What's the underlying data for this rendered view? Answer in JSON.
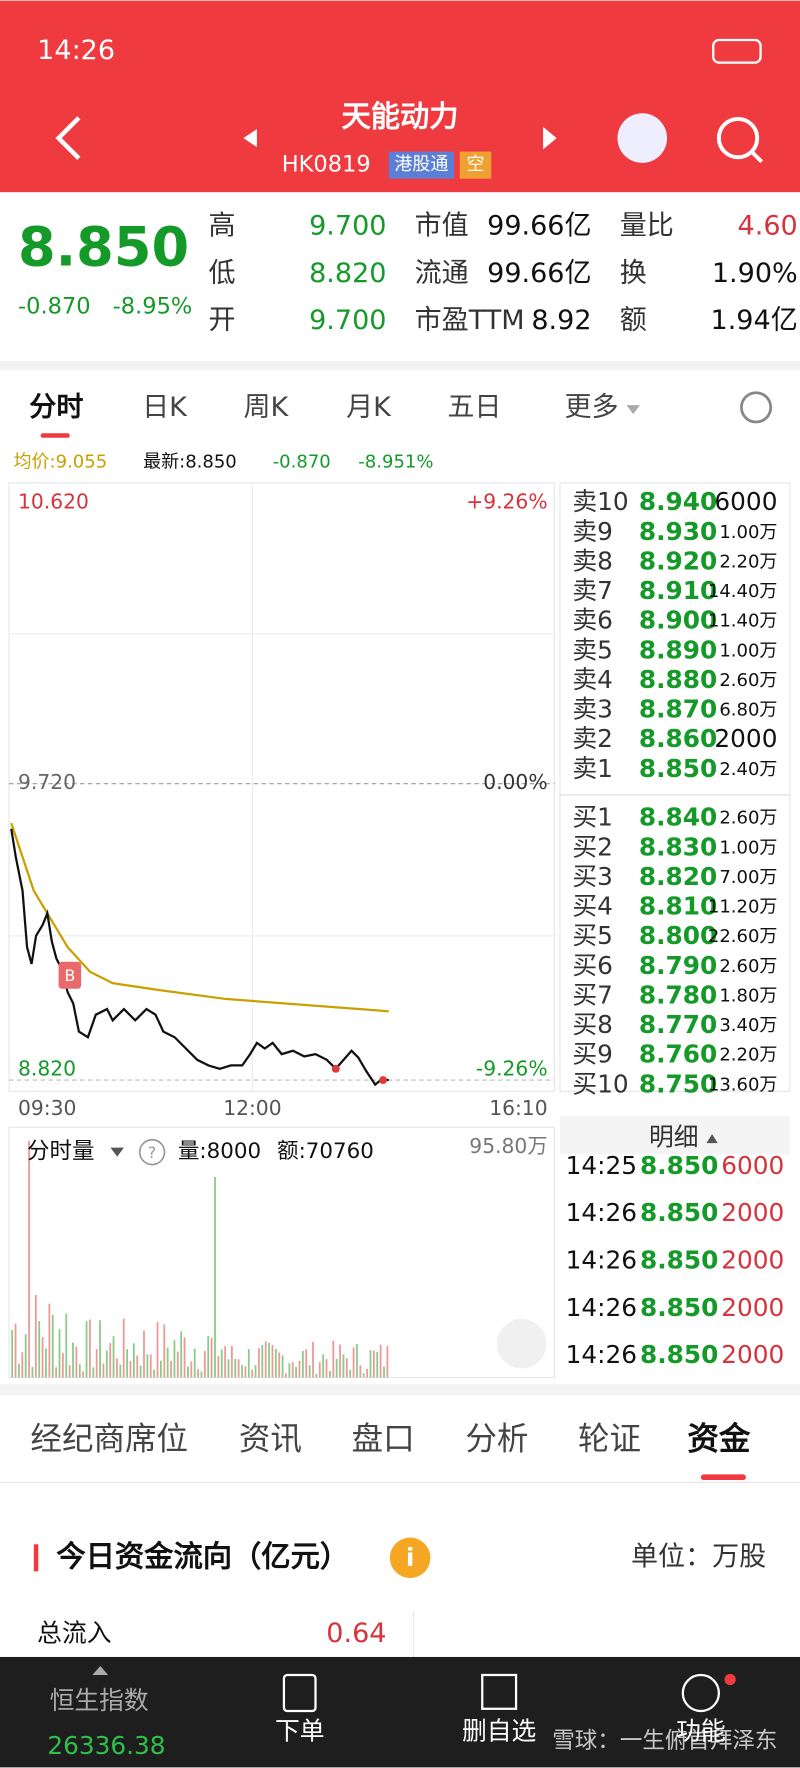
{
  "status_bar": {
    "time": "14:26"
  },
  "header": {
    "title": "天能动力",
    "code": "HK0819",
    "tags": [
      "港股通",
      "空"
    ]
  },
  "quote": {
    "price": "8.850",
    "change": "-0.870",
    "change_pct": "-8.95%",
    "stats": [
      [
        {
          "label": "高",
          "value": "9.700"
        },
        {
          "label": "低",
          "value": "8.820"
        },
        {
          "label": "开",
          "value": "9.700"
        }
      ],
      [
        {
          "label": "市值",
          "value": "99.66亿"
        },
        {
          "label": "流通",
          "value": "99.66亿"
        },
        {
          "label": "市盈TTM",
          "value": "8.92"
        }
      ],
      [
        {
          "label": "量比",
          "value": "4.60"
        },
        {
          "label": "换",
          "value": "1.90%"
        },
        {
          "label": "额",
          "value": "1.94亿"
        }
      ]
    ]
  },
  "tabs": [
    "分时",
    "日K",
    "周K",
    "月K",
    "五日",
    "更多"
  ],
  "chart": {
    "avg_price": "均价:9.055",
    "latest": "最新:8.850",
    "change": "-0.870",
    "change_pct": "-8.951%",
    "price_high": "10.620",
    "pct_high": "+9.26%",
    "price_mid": "9.720",
    "pct_mid": "0.00%",
    "price_low": "8.820",
    "pct_low": "-9.26%",
    "times": [
      "09:30",
      "12:00",
      "16:10"
    ],
    "marker": "B"
  },
  "volume": {
    "title": "分时量",
    "volume": "量:8000",
    "amount": "额:70760",
    "max": "95.80万"
  },
  "order_book": {
    "asks": [
      {
        "label": "卖10",
        "price": "8.940",
        "volume": "6000"
      },
      {
        "label": "卖9",
        "price": "8.930",
        "volume": "1.00万"
      },
      {
        "label": "卖8",
        "price": "8.920",
        "volume": "2.20万"
      },
      {
        "label": "卖7",
        "price": "8.910",
        "volume": "14.40万"
      },
      {
        "label": "卖6",
        "price": "8.900",
        "volume": "11.40万"
      },
      {
        "label": "卖5",
        "price": "8.890",
        "volume": "1.00万"
      },
      {
        "label": "卖4",
        "price": "8.880",
        "volume": "2.60万"
      },
      {
        "label": "卖3",
        "price": "8.870",
        "volume": "6.80万"
      },
      {
        "label": "卖2",
        "price": "8.860",
        "volume": "2000"
      },
      {
        "label": "卖1",
        "price": "8.850",
        "volume": "2.40万"
      }
    ],
    "bids": [
      {
        "label": "买1",
        "price": "8.840",
        "volume": "2.60万"
      },
      {
        "label": "买2",
        "price": "8.830",
        "volume": "1.00万"
      },
      {
        "label": "买3",
        "price": "8.820",
        "volume": "7.00万"
      },
      {
        "label": "买4",
        "price": "8.810",
        "volume": "11.20万"
      },
      {
        "label": "买5",
        "price": "8.800",
        "volume": "22.60万"
      },
      {
        "label": "买6",
        "price": "8.790",
        "volume": "2.60万"
      },
      {
        "label": "买7",
        "price": "8.780",
        "volume": "1.80万"
      },
      {
        "label": "买8",
        "price": "8.770",
        "volume": "3.40万"
      },
      {
        "label": "买9",
        "price": "8.760",
        "volume": "2.20万"
      },
      {
        "label": "买10",
        "price": "8.750",
        "volume": "13.60万"
      }
    ]
  },
  "detail": {
    "title": "明细",
    "rows": [
      {
        "time": "14:25",
        "price": "8.850",
        "volume": "6000"
      },
      {
        "time": "14:26",
        "price": "8.850",
        "volume": "2000"
      },
      {
        "time": "14:26",
        "price": "8.850",
        "volume": "2000"
      },
      {
        "time": "14:26",
        "price": "8.850",
        "volume": "2000"
      },
      {
        "time": "14:26",
        "price": "8.850",
        "volume": "2000"
      }
    ]
  },
  "bottom_tabs": [
    "经纪商席位",
    "资讯",
    "盘口",
    "分析",
    "轮证",
    "资金"
  ],
  "fund_flow": {
    "title": "今日资金流向（亿元）",
    "unit": "单位：万股",
    "rows": [
      {
        "label": "总流入",
        "value": "0.64"
      }
    ]
  },
  "nav": {
    "index_name": "恒生指数",
    "index_value": "26336.38",
    "items": [
      "下单",
      "删自选",
      "功能"
    ],
    "watermark": "雪球：一生俯首拜泽东"
  }
}
